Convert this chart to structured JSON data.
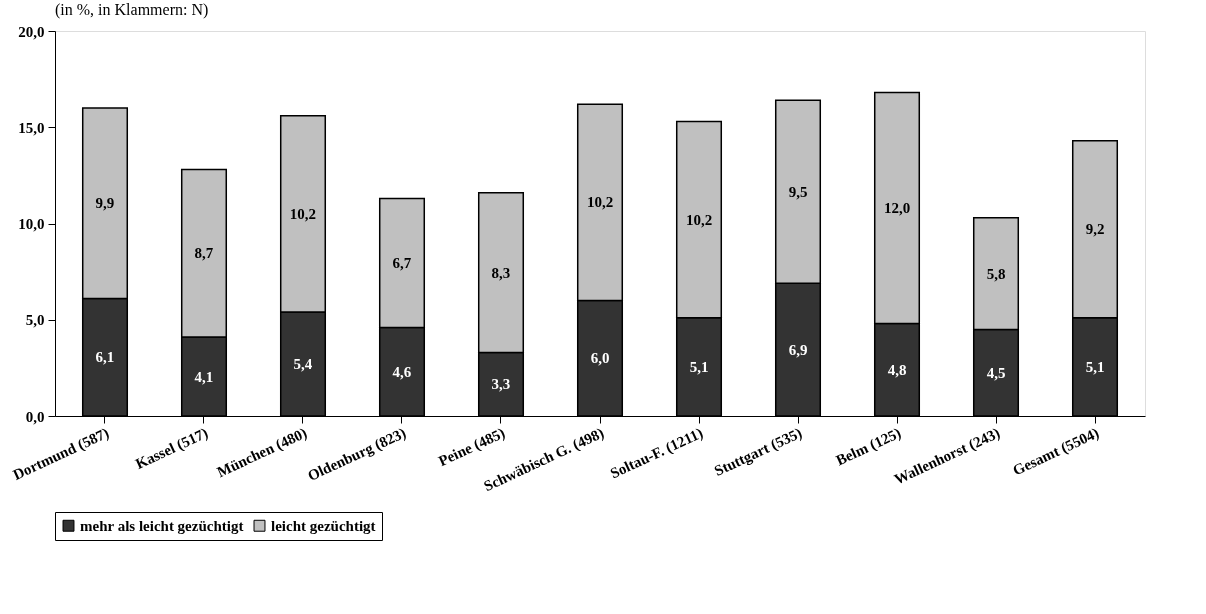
{
  "chart_data": {
    "type": "bar",
    "stacked": true,
    "title": "(in %, in Klammern: N)",
    "categories": [
      "Dortmund (587)",
      "Kassel (517)",
      "München (480)",
      "Oldenburg (823)",
      "Peine (485)",
      "Schwäbisch G. (498)",
      "Soltau-F. (1211)",
      "Stuttgart (535)",
      "Belm (125)",
      "Wallenhorst (243)",
      "Gesamt (5504)"
    ],
    "series": [
      {
        "name": "mehr als leicht gezüchtigt",
        "color": "#333333",
        "values": [
          6.1,
          4.1,
          5.4,
          4.6,
          3.3,
          6.0,
          5.1,
          6.9,
          4.8,
          4.5,
          5.1
        ],
        "value_labels": [
          "6,1",
          "4,1",
          "5,4",
          "4,6",
          "3,3",
          "6,0",
          "5,1",
          "6,9",
          "4,8",
          "4,5",
          "5,1"
        ]
      },
      {
        "name": "leicht gezüchtigt",
        "color": "#c0c0c0",
        "values": [
          9.9,
          8.7,
          10.2,
          6.7,
          8.3,
          10.2,
          10.2,
          9.5,
          12.0,
          5.8,
          9.2
        ],
        "value_labels": [
          "9,9",
          "8,7",
          "10,2",
          "6,7",
          "8,3",
          "10,2",
          "10,2",
          "9,5",
          "12,0",
          "5,8",
          "9,2"
        ]
      }
    ],
    "ylim": [
      0,
      20
    ],
    "yticks": [
      {
        "value": 0,
        "label": "0,0"
      },
      {
        "value": 5,
        "label": "5,0"
      },
      {
        "value": 10,
        "label": "10,0"
      },
      {
        "value": 15,
        "label": "15,0"
      },
      {
        "value": 20,
        "label": "20,0"
      }
    ],
    "grid": false,
    "legend": "bottom"
  }
}
